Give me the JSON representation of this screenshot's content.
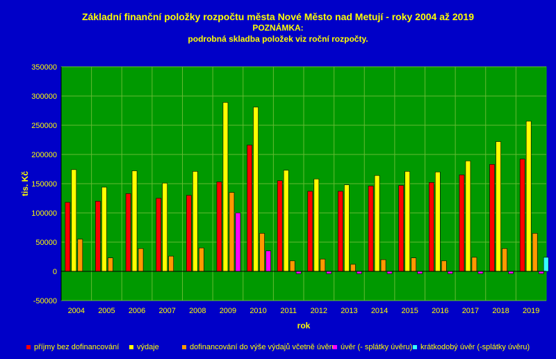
{
  "chart_data": {
    "type": "bar",
    "title": "Základní finanční položky rozpočtu města Nové Město nad Metují - roky 2004 až 2019",
    "subtitle": "POZNÁMKA:",
    "note": "podrobná skladba položek viz roční rozpočty.",
    "xlabel": "rok",
    "ylabel": "tis. Kč",
    "ylim": [
      -50000,
      350000
    ],
    "yticks": [
      -50000,
      0,
      50000,
      100000,
      150000,
      200000,
      250000,
      300000,
      350000
    ],
    "grid": true,
    "legend_position": "bottom",
    "categories": [
      "2004",
      "2005",
      "2006",
      "2007",
      "2008",
      "2009",
      "2010",
      "2011",
      "2012",
      "2013",
      "2014",
      "2015",
      "2016",
      "2017",
      "2018",
      "2019"
    ],
    "series": [
      {
        "name": "příjmy bez dofinancování",
        "color": "#ff0000",
        "values": [
          118000,
          120000,
          133000,
          125000,
          130000,
          153000,
          216000,
          155000,
          137000,
          137000,
          146000,
          147000,
          152000,
          165000,
          183000,
          192000
        ]
      },
      {
        "name": "výdaje",
        "color": "#ffff00",
        "values": [
          174000,
          144000,
          172000,
          151000,
          171000,
          289000,
          281000,
          173000,
          158000,
          148000,
          164000,
          171000,
          170000,
          189000,
          222000,
          257000
        ]
      },
      {
        "name": "dofinancování do výše výdajů včetně úvěru",
        "color": "#ff9900",
        "values": [
          55000,
          23000,
          39000,
          26000,
          40000,
          135000,
          65000,
          18000,
          21000,
          12000,
          20000,
          23000,
          18000,
          24000,
          39000,
          65000
        ]
      },
      {
        "name": "úvěr (- splátky úvěru)",
        "color": "#ff00ff",
        "values": [
          0,
          0,
          0,
          0,
          0,
          100000,
          35000,
          -4000,
          -4000,
          -4000,
          -4000,
          -4000,
          -4000,
          -4000,
          -4000,
          -4000
        ]
      },
      {
        "name": "krátkodobý úvěr (-splátky úvěru)",
        "color": "#33ffff",
        "values": [
          0,
          0,
          0,
          0,
          0,
          0,
          0,
          0,
          0,
          0,
          0,
          0,
          0,
          0,
          0,
          24000
        ]
      }
    ]
  }
}
